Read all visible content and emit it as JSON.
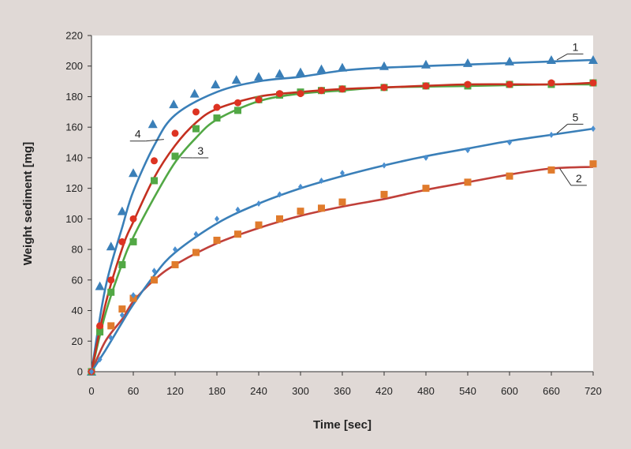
{
  "chart_data": {
    "type": "scatter",
    "title": "",
    "xlabel": "Time [sec]",
    "ylabel": "Weight sediment [mg]",
    "xlim": [
      0,
      720
    ],
    "ylim": [
      0,
      220
    ],
    "xticks": [
      0,
      60,
      120,
      180,
      240,
      300,
      360,
      420,
      480,
      540,
      600,
      660,
      720
    ],
    "yticks": [
      0,
      20,
      40,
      60,
      80,
      100,
      120,
      140,
      160,
      180,
      200,
      220
    ],
    "grid": false,
    "series": [
      {
        "name": "1",
        "color": "#3a7fb8",
        "marker": "triangle",
        "points": [
          [
            0,
            0
          ],
          [
            12,
            56
          ],
          [
            28,
            82
          ],
          [
            44,
            105
          ],
          [
            60,
            130
          ],
          [
            88,
            162
          ],
          [
            118,
            175
          ],
          [
            148,
            182
          ],
          [
            178,
            188
          ],
          [
            208,
            191
          ],
          [
            240,
            193
          ],
          [
            270,
            195
          ],
          [
            300,
            196
          ],
          [
            330,
            198
          ],
          [
            360,
            199
          ],
          [
            420,
            200
          ],
          [
            480,
            201
          ],
          [
            540,
            202
          ],
          [
            600,
            203
          ],
          [
            660,
            204
          ],
          [
            720,
            204
          ]
        ],
        "fit": [
          [
            0,
            0
          ],
          [
            20,
            55
          ],
          [
            45,
            96
          ],
          [
            60,
            118
          ],
          [
            90,
            148
          ],
          [
            120,
            168
          ],
          [
            180,
            183
          ],
          [
            240,
            190
          ],
          [
            300,
            193
          ],
          [
            360,
            197
          ],
          [
            420,
            199
          ],
          [
            540,
            201
          ],
          [
            660,
            203
          ],
          [
            720,
            204
          ]
        ]
      },
      {
        "name": "2",
        "color": "#e07b2c",
        "line_color": "#c0403a",
        "marker": "square",
        "points": [
          [
            0,
            0
          ],
          [
            12,
            28
          ],
          [
            28,
            30
          ],
          [
            44,
            41
          ],
          [
            60,
            48
          ],
          [
            90,
            60
          ],
          [
            120,
            70
          ],
          [
            150,
            78
          ],
          [
            180,
            86
          ],
          [
            210,
            90
          ],
          [
            240,
            96
          ],
          [
            270,
            100
          ],
          [
            300,
            105
          ],
          [
            330,
            107
          ],
          [
            360,
            111
          ],
          [
            420,
            116
          ],
          [
            480,
            120
          ],
          [
            540,
            124
          ],
          [
            600,
            128
          ],
          [
            660,
            132
          ],
          [
            720,
            136
          ]
        ],
        "fit": [
          [
            0,
            0
          ],
          [
            20,
            20
          ],
          [
            45,
            35
          ],
          [
            60,
            46
          ],
          [
            90,
            60
          ],
          [
            120,
            70
          ],
          [
            180,
            84
          ],
          [
            240,
            94
          ],
          [
            300,
            102
          ],
          [
            360,
            108
          ],
          [
            420,
            113
          ],
          [
            480,
            119
          ],
          [
            540,
            124
          ],
          [
            600,
            129
          ],
          [
            660,
            133
          ],
          [
            720,
            134
          ]
        ]
      },
      {
        "name": "3",
        "color": "#52a845",
        "line_color": "#52a845",
        "marker": "square",
        "points": [
          [
            0,
            0
          ],
          [
            12,
            26
          ],
          [
            28,
            52
          ],
          [
            44,
            70
          ],
          [
            60,
            85
          ],
          [
            90,
            125
          ],
          [
            120,
            141
          ],
          [
            150,
            159
          ],
          [
            180,
            166
          ],
          [
            210,
            171
          ],
          [
            240,
            178
          ],
          [
            270,
            181
          ],
          [
            300,
            183
          ],
          [
            330,
            184
          ],
          [
            360,
            185
          ],
          [
            420,
            186
          ],
          [
            480,
            187
          ],
          [
            540,
            187
          ],
          [
            600,
            188
          ],
          [
            660,
            188
          ],
          [
            720,
            189
          ]
        ],
        "fit": [
          [
            0,
            0
          ],
          [
            20,
            38
          ],
          [
            45,
            72
          ],
          [
            60,
            88
          ],
          [
            90,
            114
          ],
          [
            120,
            137
          ],
          [
            150,
            153
          ],
          [
            180,
            165
          ],
          [
            240,
            177
          ],
          [
            300,
            182
          ],
          [
            360,
            184
          ],
          [
            420,
            186
          ],
          [
            540,
            187
          ],
          [
            660,
            188
          ],
          [
            720,
            188
          ]
        ]
      },
      {
        "name": "4",
        "color": "#dd3322",
        "line_color": "#c43020",
        "marker": "circle",
        "points": [
          [
            0,
            0
          ],
          [
            12,
            30
          ],
          [
            28,
            60
          ],
          [
            44,
            85
          ],
          [
            60,
            100
          ],
          [
            90,
            138
          ],
          [
            120,
            156
          ],
          [
            150,
            170
          ],
          [
            180,
            173
          ],
          [
            210,
            176
          ],
          [
            240,
            178
          ],
          [
            270,
            182
          ],
          [
            300,
            182
          ],
          [
            330,
            184
          ],
          [
            360,
            185
          ],
          [
            420,
            186
          ],
          [
            480,
            187
          ],
          [
            540,
            188
          ],
          [
            600,
            188
          ],
          [
            660,
            189
          ],
          [
            720,
            189
          ]
        ],
        "fit": [
          [
            0,
            0
          ],
          [
            20,
            44
          ],
          [
            45,
            82
          ],
          [
            60,
            98
          ],
          [
            90,
            127
          ],
          [
            120,
            148
          ],
          [
            150,
            163
          ],
          [
            180,
            172
          ],
          [
            240,
            180
          ],
          [
            300,
            183
          ],
          [
            360,
            185
          ],
          [
            420,
            186
          ],
          [
            540,
            188
          ],
          [
            660,
            188
          ],
          [
            720,
            189
          ]
        ]
      },
      {
        "name": "5",
        "color": "#4a8fd0",
        "line_color": "#3a7fb8",
        "marker": "diamond",
        "points": [
          [
            0,
            0
          ],
          [
            12,
            8
          ],
          [
            28,
            22
          ],
          [
            44,
            37
          ],
          [
            60,
            50
          ],
          [
            90,
            66
          ],
          [
            120,
            80
          ],
          [
            150,
            90
          ],
          [
            180,
            100
          ],
          [
            210,
            106
          ],
          [
            240,
            110
          ],
          [
            270,
            116
          ],
          [
            300,
            121
          ],
          [
            330,
            125
          ],
          [
            360,
            130
          ],
          [
            420,
            135
          ],
          [
            480,
            140
          ],
          [
            540,
            145
          ],
          [
            600,
            150
          ],
          [
            660,
            155
          ],
          [
            720,
            159
          ]
        ],
        "fit": [
          [
            0,
            0
          ],
          [
            20,
            14
          ],
          [
            45,
            33
          ],
          [
            60,
            44
          ],
          [
            90,
            63
          ],
          [
            120,
            78
          ],
          [
            180,
            97
          ],
          [
            240,
            110
          ],
          [
            300,
            120
          ],
          [
            360,
            128
          ],
          [
            420,
            135
          ],
          [
            480,
            141
          ],
          [
            540,
            146
          ],
          [
            600,
            151
          ],
          [
            660,
            155
          ],
          [
            720,
            159
          ]
        ]
      }
    ],
    "annotations": [
      {
        "text": "1",
        "series": "1",
        "anchor": [
          668,
          204
        ],
        "label_at": [
          690,
          210
        ]
      },
      {
        "text": "5",
        "series": "5",
        "anchor": [
          668,
          156
        ],
        "label_at": [
          690,
          164
        ]
      },
      {
        "text": "2",
        "series": "2",
        "anchor": [
          672,
          133
        ],
        "label_at": [
          695,
          124
        ]
      },
      {
        "text": "4",
        "series": "4",
        "anchor": [
          104,
          152
        ],
        "label_at": [
          62,
          153
        ]
      },
      {
        "text": "3",
        "series": "3",
        "anchor": [
          128,
          140
        ],
        "label_at": [
          152,
          142
        ]
      }
    ]
  }
}
